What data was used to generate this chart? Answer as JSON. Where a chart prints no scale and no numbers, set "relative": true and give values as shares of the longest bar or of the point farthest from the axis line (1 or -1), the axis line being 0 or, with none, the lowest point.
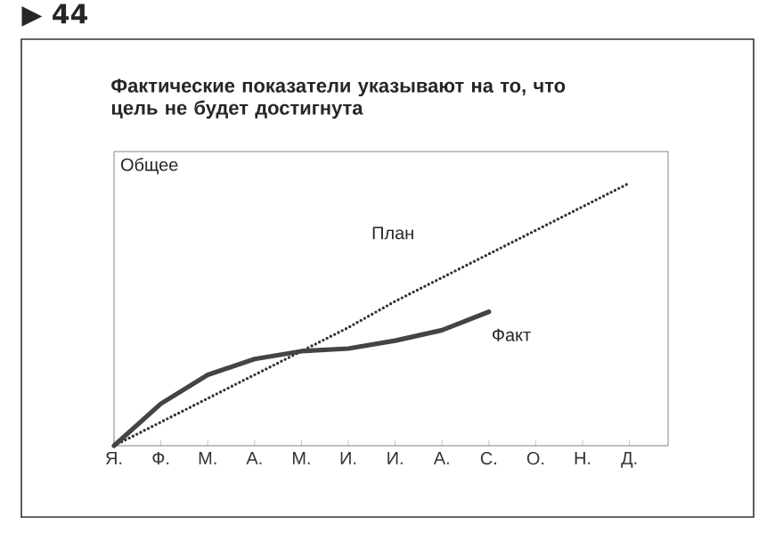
{
  "chart_data": {
    "type": "line",
    "title": "Фактические показатели указывают на то, что цель не будет достигнута",
    "ylabel": "Общее",
    "annotations": [
      "▶ 44"
    ],
    "categories": [
      "Я.",
      "Ф.",
      "М.",
      "А.",
      "М.",
      "И.",
      "И.",
      "А.",
      "С.",
      "О.",
      "Н.",
      "Д."
    ],
    "relative": true,
    "grid": false,
    "legend": false,
    "marker": "none",
    "series": [
      {
        "name": "План",
        "color": "#333333",
        "line_style": "dotted",
        "values": [
          0,
          0.09,
          0.18,
          0.27,
          0.36,
          0.45,
          0.55,
          0.64,
          0.73,
          0.82,
          0.91,
          1
        ]
      },
      {
        "name": "Факт",
        "color": "#444444",
        "line_style": "solid",
        "values": [
          0,
          0.16,
          0.27,
          0.33,
          0.36,
          0.37,
          0.4,
          0.44,
          0.51,
          null,
          null,
          null
        ]
      }
    ]
  }
}
